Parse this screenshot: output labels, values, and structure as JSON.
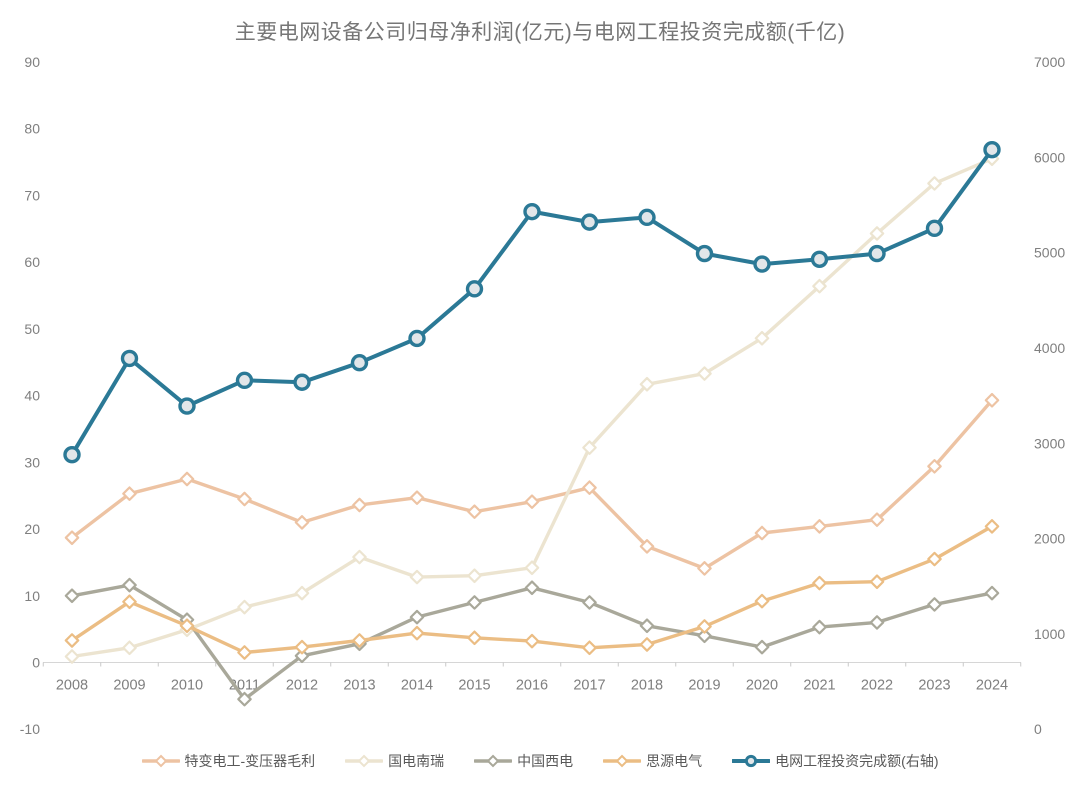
{
  "title": "主要电网设备公司归母净利润(亿元)与电网工程投资完成额(千亿)",
  "chart_data": {
    "type": "line",
    "title": "主要电网设备公司归母净利润(亿元)与电网工程投资完成额(千亿)",
    "categories": [
      "2008",
      "2009",
      "2010",
      "2011",
      "2012",
      "2013",
      "2014",
      "2015",
      "2016",
      "2017",
      "2018",
      "2019",
      "2020",
      "2021",
      "2022",
      "2023",
      "2024"
    ],
    "left_axis": {
      "label": "归母净利润(亿元)",
      "min": -10,
      "max": 90,
      "ticks": [
        90,
        80,
        70,
        60,
        50,
        40,
        30,
        20,
        10,
        0,
        -10
      ]
    },
    "right_axis": {
      "label": "电网工程投资完成额(千亿)",
      "min": 0,
      "max": 7000,
      "ticks": [
        7000,
        6000,
        5000,
        4000,
        3000,
        2000,
        1000,
        0
      ]
    },
    "grid": false,
    "legend_position": "bottom",
    "series": [
      {
        "name": "特变电工-变压器毛利",
        "axis": "left",
        "marker": "diamond",
        "color": "#edc3a3",
        "marker_fill": "#ffffff",
        "values": [
          18.7,
          25.3,
          27.5,
          24.5,
          21.0,
          23.6,
          24.7,
          22.6,
          24.1,
          26.2,
          17.4,
          14.1,
          19.4,
          20.4,
          21.4,
          29.4,
          39.3
        ]
      },
      {
        "name": "国电南瑞",
        "axis": "left",
        "marker": "diamond",
        "color": "#ece4d0",
        "marker_fill": "#ffffff",
        "values": [
          0.9,
          2.2,
          4.9,
          8.3,
          10.4,
          15.8,
          12.8,
          13.0,
          14.2,
          32.2,
          41.7,
          43.3,
          48.6,
          56.4,
          64.3,
          71.8,
          75.5
        ]
      },
      {
        "name": "中国西电",
        "axis": "left",
        "marker": "diamond",
        "color": "#a9a89a",
        "marker_fill": "#ffffff",
        "values": [
          10.0,
          11.6,
          6.4,
          -5.5,
          1.0,
          2.8,
          6.8,
          9.0,
          11.2,
          9.0,
          5.5,
          4.0,
          2.3,
          5.3,
          6.0,
          8.7,
          10.4
        ]
      },
      {
        "name": "思源电气",
        "axis": "left",
        "marker": "diamond",
        "color": "#ebbd84",
        "marker_fill": "#ffffff",
        "values": [
          3.3,
          9.1,
          5.5,
          1.5,
          2.3,
          3.3,
          4.4,
          3.7,
          3.2,
          2.2,
          2.7,
          5.4,
          9.2,
          11.9,
          12.1,
          15.5,
          20.4
        ]
      },
      {
        "name": "电网工程投资完成额(右轴)",
        "axis": "right",
        "marker": "circle",
        "color": "#2b7996",
        "marker_fill": "#e2e6e9",
        "values": [
          2880,
          3890,
          3390,
          3660,
          3640,
          3845,
          4100,
          4620,
          5430,
          5320,
          5370,
          4990,
          4880,
          4930,
          4990,
          5255,
          6080
        ]
      }
    ],
    "style": {
      "axis_line_color": "#d6d6d6",
      "tick_color": "#c8c8c8",
      "axis_label_color": "#7f7f7f",
      "title_color": "#767676",
      "legend_text_color": "#595959",
      "background": "#ffffff"
    }
  }
}
